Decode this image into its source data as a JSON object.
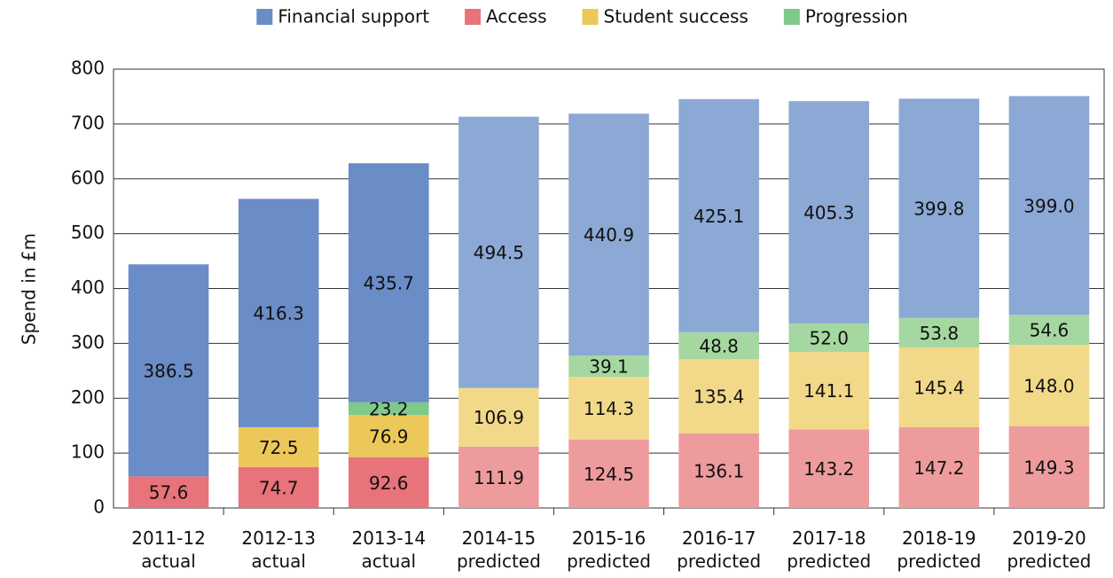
{
  "chart_data": {
    "type": "stacked-bar",
    "y_label": "Spend in £m",
    "categories": [
      "2011-12\nactual",
      "2012-13\nactual",
      "2013-14\nactual",
      "2014-15\npredicted",
      "2015-16\npredicted",
      "2016-17\npredicted",
      "2017-18\npredicted",
      "2018-19\npredicted",
      "2019-20\npredicted"
    ],
    "series": [
      {
        "name": "Access",
        "color": "#e8737a",
        "colors": [
          "#e8737a",
          "#e8737a",
          "#e8737a",
          "#ee9b9e",
          "#ee9b9e",
          "#ee9b9e",
          "#ee9b9e",
          "#ee9b9e",
          "#ee9b9e"
        ],
        "values": [
          57.6,
          74.7,
          92.6,
          111.9,
          124.5,
          136.1,
          143.2,
          147.2,
          149.3
        ],
        "value_labels": [
          "57.6",
          "74.7",
          "92.6",
          "111.9",
          "124.5",
          "136.1",
          "143.2",
          "147.2",
          "149.3"
        ]
      },
      {
        "name": "Student success",
        "color": "#ecc85a",
        "colors": [
          "#ecc85a",
          "#ecc85a",
          "#ecc85a",
          "#f2d98a",
          "#f2d98a",
          "#f2d98a",
          "#f2d98a",
          "#f2d98a",
          "#f2d98a"
        ],
        "values": [
          null,
          72.5,
          76.9,
          106.9,
          114.3,
          135.4,
          141.1,
          145.4,
          148.0
        ],
        "value_labels": [
          null,
          "72.5",
          "76.9",
          "106.9",
          "114.3",
          "135.4",
          "141.1",
          "145.4",
          "148.0"
        ]
      },
      {
        "name": "Progression",
        "color": "#7fc98a",
        "colors": [
          "#7fc98a",
          "#7fc98a",
          "#7fc98a",
          "#a5d8a0",
          "#a5d8a0",
          "#a5d8a0",
          "#a5d8a0",
          "#a5d8a0",
          "#a5d8a0"
        ],
        "values": [
          null,
          null,
          23.2,
          null,
          39.1,
          48.8,
          52.0,
          53.8,
          54.6
        ],
        "value_labels": [
          null,
          null,
          "23.2",
          null,
          "39.1",
          "48.8",
          "52.0",
          "53.8",
          "54.6"
        ]
      },
      {
        "name": "Financial support",
        "color": "#6a8cc7",
        "colors": [
          "#6a8cc7",
          "#6a8cc7",
          "#6a8cc7",
          "#8ca8d5",
          "#8ca8d5",
          "#8ca8d5",
          "#8ca8d5",
          "#8ca8d5",
          "#8ca8d5"
        ],
        "values": [
          386.5,
          416.3,
          435.7,
          494.5,
          440.9,
          425.1,
          405.3,
          399.8,
          399.0
        ],
        "value_labels": [
          "386.5",
          "416.3",
          "435.7",
          "494.5",
          "440.9",
          "425.1",
          "405.3",
          "399.8",
          "399.0"
        ]
      }
    ],
    "legend_order": [
      3,
      0,
      1,
      2
    ],
    "ylim": [
      0,
      800
    ],
    "yticks": [
      0,
      100,
      200,
      300,
      400,
      500,
      600,
      700,
      800
    ],
    "grid": true
  }
}
